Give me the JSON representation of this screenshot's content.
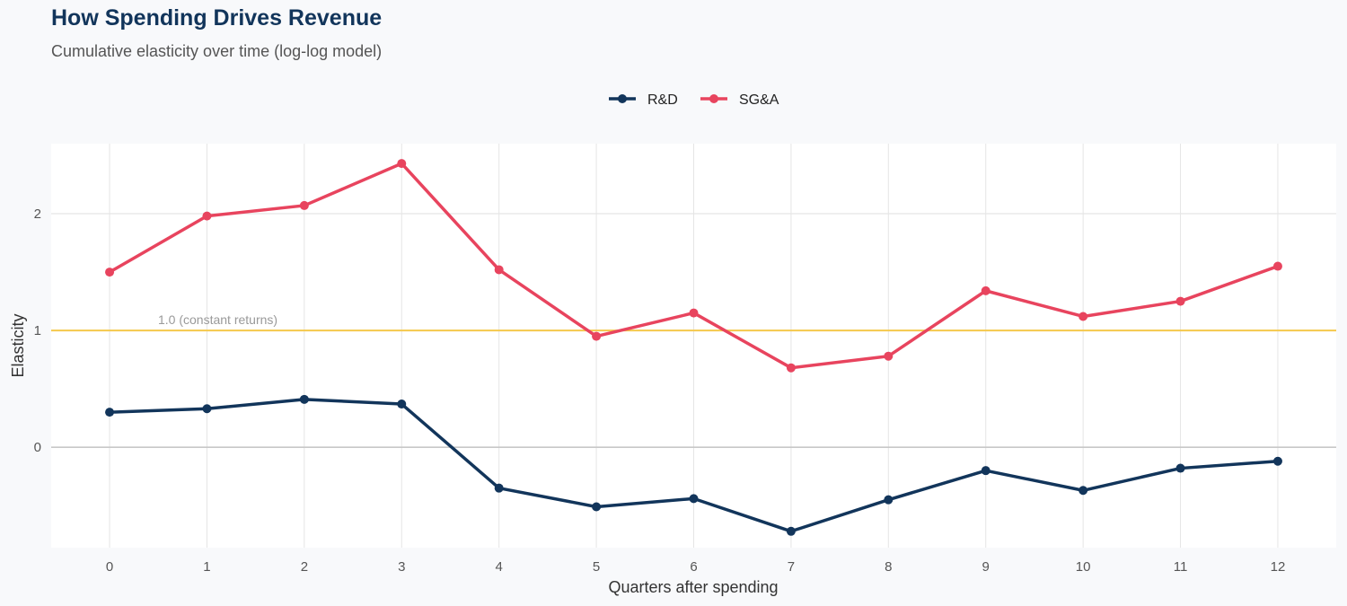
{
  "chart_data": {
    "type": "line",
    "title": "How Spending Drives Revenue",
    "subtitle": "Cumulative elasticity over time (log-log model)",
    "xlabel": "Quarters after spending",
    "ylabel": "Elasticity",
    "x": [
      0,
      1,
      2,
      3,
      4,
      5,
      6,
      7,
      8,
      9,
      10,
      11,
      12
    ],
    "xlim": [
      -0.6,
      12.6
    ],
    "ylim": [
      -0.86,
      2.6
    ],
    "yticks": [
      0,
      1,
      2
    ],
    "grid": true,
    "legend_position": "top",
    "series": [
      {
        "name": "R&D",
        "color": "#12355b",
        "values": [
          0.3,
          0.33,
          0.41,
          0.37,
          -0.35,
          -0.51,
          -0.44,
          -0.72,
          -0.45,
          -0.2,
          -0.37,
          -0.18,
          -0.12
        ]
      },
      {
        "name": "SG&A",
        "color": "#e8445e",
        "values": [
          1.5,
          1.98,
          2.07,
          2.43,
          1.52,
          0.95,
          1.15,
          0.68,
          0.78,
          1.34,
          1.12,
          1.25,
          1.55
        ]
      }
    ],
    "reference_line": {
      "y": 1.0,
      "label": "1.0 (constant returns)",
      "color": "#f5c84c"
    }
  }
}
